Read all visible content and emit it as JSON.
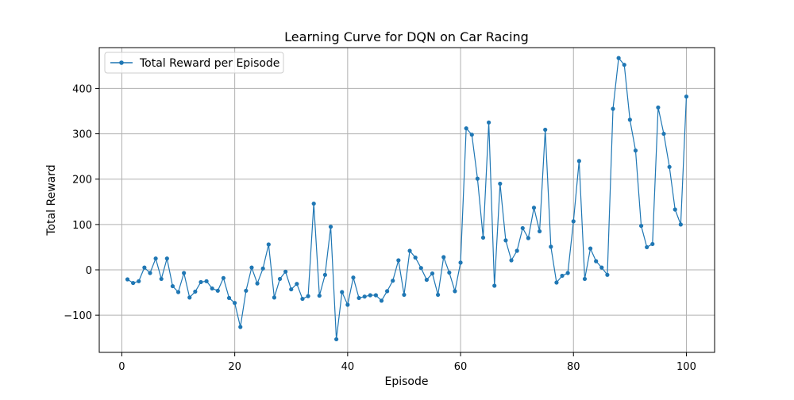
{
  "chart_data": {
    "type": "line",
    "title": "Learning Curve for DQN on Car Racing",
    "xlabel": "Episode",
    "ylabel": "Total Reward",
    "xlim": [
      -4,
      105
    ],
    "ylim": [
      -182,
      490
    ],
    "xticks": [
      0,
      20,
      40,
      60,
      80,
      100
    ],
    "yticks": [
      -100,
      0,
      100,
      200,
      300,
      400
    ],
    "xtick_labels": [
      "0",
      "20",
      "40",
      "60",
      "80",
      "100"
    ],
    "ytick_labels": [
      "−100",
      "0",
      "100",
      "200",
      "300",
      "400"
    ],
    "grid": true,
    "legend_position": "upper-left",
    "colors": {
      "series": "#1f77b4",
      "grid": "#b0b0b0",
      "axes": "#000000",
      "background": "#ffffff"
    },
    "series": [
      {
        "name": "Total Reward per Episode",
        "marker": "circle",
        "x": [
          1,
          2,
          3,
          4,
          5,
          6,
          7,
          8,
          9,
          10,
          11,
          12,
          13,
          14,
          15,
          16,
          17,
          18,
          19,
          20,
          21,
          22,
          23,
          24,
          25,
          26,
          27,
          28,
          29,
          30,
          31,
          32,
          33,
          34,
          35,
          36,
          37,
          38,
          39,
          40,
          41,
          42,
          43,
          44,
          45,
          46,
          47,
          48,
          49,
          50,
          51,
          52,
          53,
          54,
          55,
          56,
          57,
          58,
          59,
          60,
          61,
          62,
          63,
          64,
          65,
          66,
          67,
          68,
          69,
          70,
          71,
          72,
          73,
          74,
          75,
          76,
          77,
          78,
          79,
          80,
          81,
          82,
          83,
          84,
          85,
          86,
          87,
          88,
          89,
          90,
          91,
          92,
          93,
          94,
          95,
          96,
          97,
          98,
          99,
          100
        ],
        "y": [
          -21,
          -29,
          -25,
          5,
          -7,
          25,
          -20,
          25,
          -36,
          -49,
          -7,
          -61,
          -48,
          -27,
          -25,
          -41,
          -46,
          -18,
          -62,
          -73,
          -126,
          -46,
          5,
          -30,
          3,
          56,
          -61,
          -20,
          -4,
          -43,
          -31,
          -64,
          -58,
          146,
          -57,
          -11,
          95,
          -153,
          -49,
          -77,
          -17,
          -62,
          -59,
          -56,
          -56,
          -68,
          -47,
          -24,
          21,
          -55,
          42,
          27,
          4,
          -22,
          -8,
          -55,
          28,
          -6,
          -47,
          16,
          312,
          298,
          201,
          71,
          325,
          -35,
          190,
          65,
          21,
          42,
          92,
          70,
          137,
          85,
          309,
          51,
          -28,
          -13,
          -7,
          107,
          240,
          -20,
          47,
          19,
          5,
          -11,
          355,
          467,
          452,
          331,
          263,
          97,
          50,
          57,
          358,
          300,
          227,
          133,
          100,
          382
        ]
      }
    ]
  }
}
